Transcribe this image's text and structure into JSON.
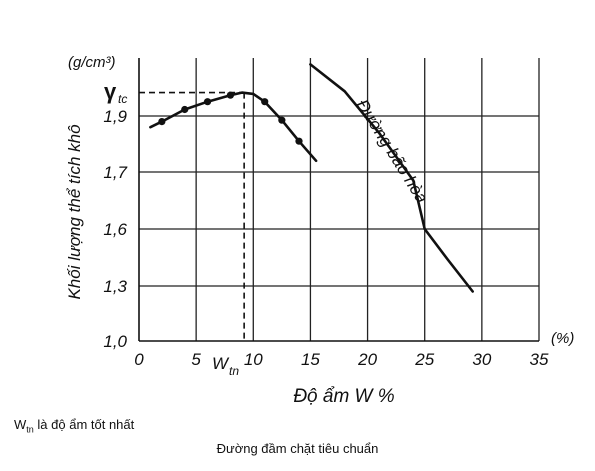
{
  "chart_data": {
    "type": "line",
    "xlabel": "Độ ẩm  W %",
    "ylabel": "Khối lượng thể tích khô",
    "y_unit": "(g/cm³)",
    "x_unit": "(%)",
    "xlim": [
      0,
      35
    ],
    "x_ticks": [
      "0",
      "5",
      "10",
      "15",
      "20",
      "25",
      "30",
      "35"
    ],
    "y_ticks": [
      "1,0",
      "1,3",
      "1,6",
      "1,7",
      "1,9"
    ],
    "grid": true,
    "series": [
      {
        "name": "",
        "style": "line-with-markers",
        "points": [
          [
            1,
            1.86
          ],
          [
            2,
            1.88
          ],
          [
            4,
            1.925
          ],
          [
            6,
            1.955
          ],
          [
            8,
            1.98
          ],
          [
            9,
            1.99
          ],
          [
            10,
            1.985
          ],
          [
            11,
            1.955
          ],
          [
            12.5,
            1.885
          ],
          [
            14,
            1.81
          ],
          [
            15.5,
            1.74
          ]
        ],
        "markers": [
          [
            2,
            1.88
          ],
          [
            4,
            1.925
          ],
          [
            6,
            1.955
          ],
          [
            8,
            1.98
          ],
          [
            11,
            1.955
          ],
          [
            12.5,
            1.885
          ],
          [
            14,
            1.81
          ]
        ]
      },
      {
        "name": "Đường bão hòa",
        "style": "line",
        "points": [
          [
            15,
            2.08
          ],
          [
            18,
            1.995
          ],
          [
            21,
            1.84
          ],
          [
            24,
            1.685
          ],
          [
            25,
            1.6
          ],
          [
            27,
            1.44
          ],
          [
            29.2,
            1.27
          ]
        ]
      }
    ],
    "annotations": {
      "gamma_symbol": "γ",
      "gamma_sub": "tc",
      "optimum_label": "W",
      "optimum_sub": "tn",
      "optimum_x": 9.2,
      "gamma_y": 1.99
    }
  },
  "note": {
    "symbol": "W",
    "sub": "tn",
    "text": " là độ ẩm tốt nhất"
  },
  "caption": "Đường đầm chặt tiêu chuẩn"
}
